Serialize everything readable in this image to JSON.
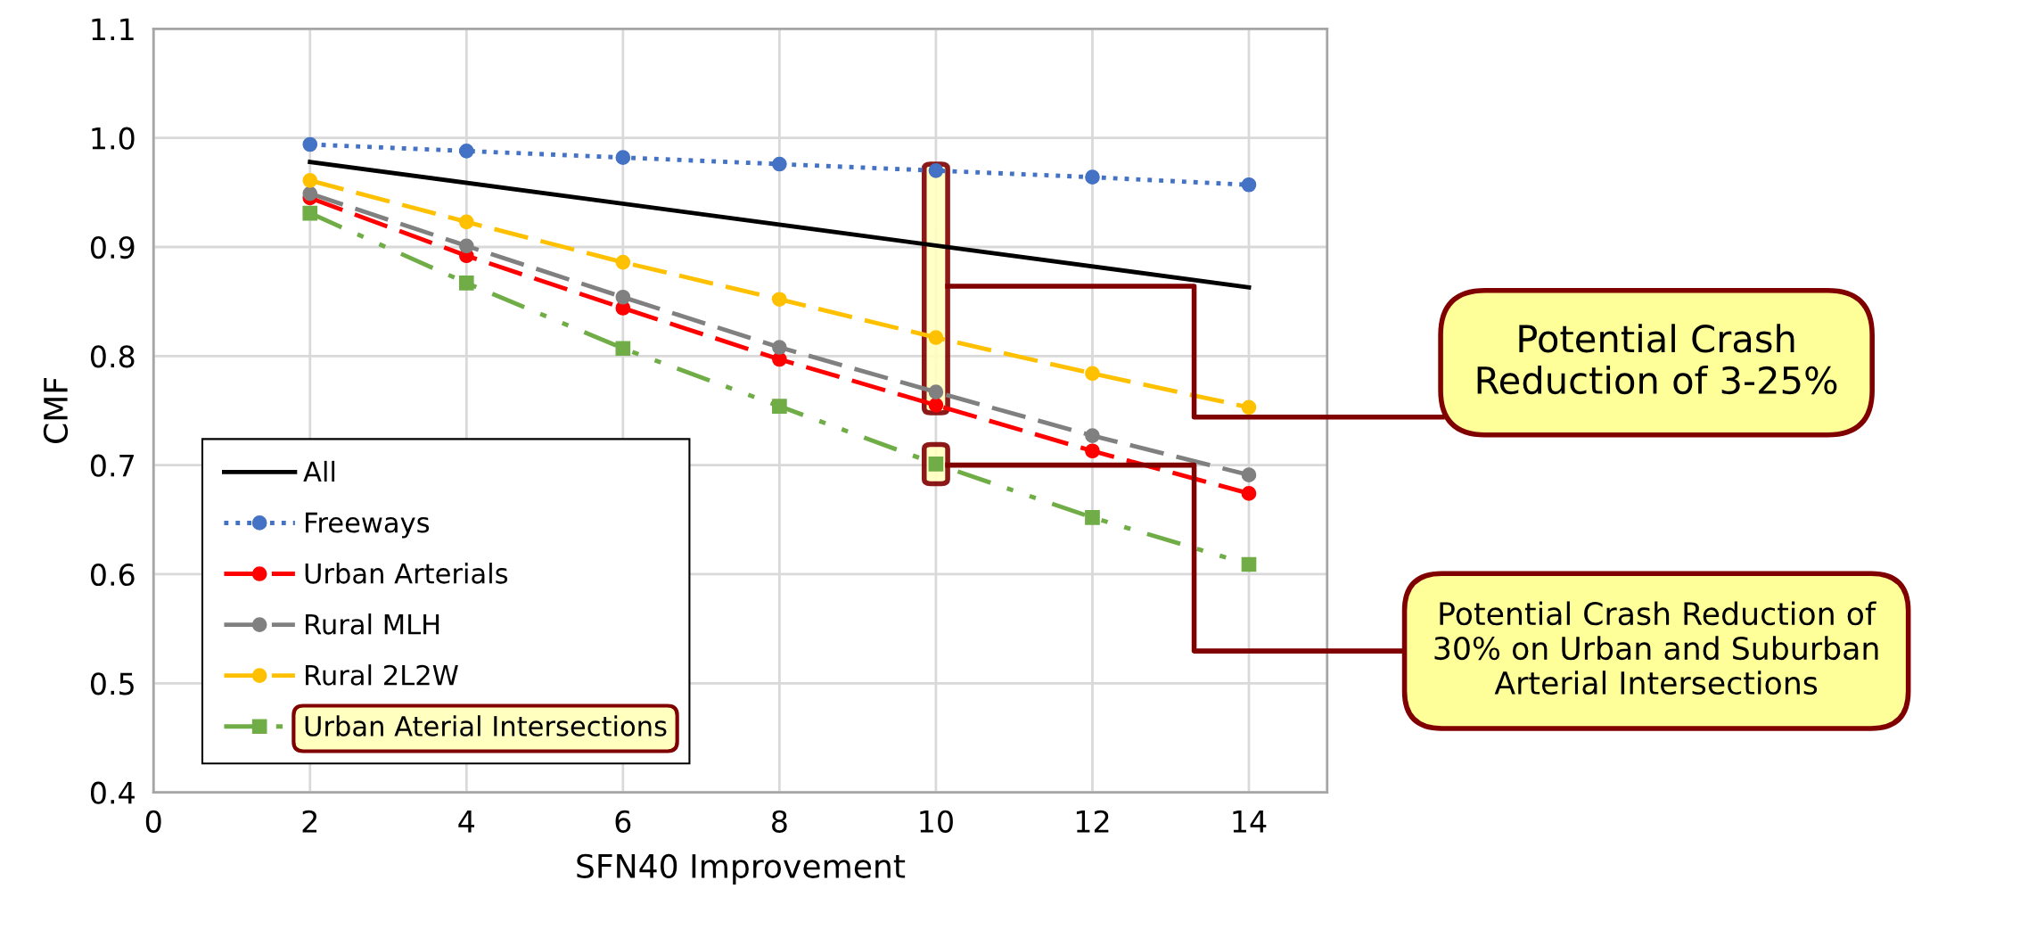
{
  "chart_data": {
    "type": "line",
    "xlabel": "SFN40 Improvement",
    "ylabel": "CMF",
    "x": [
      2,
      4,
      6,
      8,
      10,
      12,
      14
    ],
    "series": [
      {
        "name": "All",
        "color": "#000000",
        "x": [
          2,
          14
        ],
        "values": [
          0.978,
          0.863
        ],
        "marker": "none",
        "line_style": "solid"
      },
      {
        "name": "Freeways",
        "color": "#4472c4",
        "values": [
          0.994,
          0.988,
          0.982,
          0.976,
          0.97,
          0.964,
          0.957
        ],
        "marker": "circle",
        "line_style": "dotted"
      },
      {
        "name": "Urban Arterials",
        "color": "#ff0000",
        "values": [
          0.945,
          0.892,
          0.844,
          0.797,
          0.755,
          0.713,
          0.674
        ],
        "marker": "circle",
        "line_style": "dashed"
      },
      {
        "name": "Rural MLH",
        "color": "#808080",
        "values": [
          0.949,
          0.901,
          0.854,
          0.808,
          0.767,
          0.727,
          0.691
        ],
        "marker": "circle",
        "line_style": "dashed"
      },
      {
        "name": "Rural 2L2W",
        "color": "#ffc000",
        "values": [
          0.961,
          0.923,
          0.886,
          0.852,
          0.817,
          0.784,
          0.753
        ],
        "marker": "circle",
        "line_style": "dashed"
      },
      {
        "name": "Urban Aterial Intersections",
        "color": "#70ad47",
        "values": [
          0.931,
          0.867,
          0.807,
          0.754,
          0.701,
          0.652,
          0.609
        ],
        "marker": "square",
        "line_style": "dashdot"
      }
    ],
    "xlim": [
      0,
      15
    ],
    "xticks": [
      0,
      2,
      4,
      6,
      8,
      10,
      12,
      14
    ],
    "ylim": [
      0.4,
      1.1
    ],
    "yticks": [
      0.4,
      0.5,
      0.6,
      0.7,
      0.8,
      0.9,
      {
        "value": 1.0,
        "label": "1.0"
      },
      1.1
    ],
    "grid": true,
    "legend": "bottom left",
    "annotations": [
      "Potential Crash Reduction of 3-25%",
      "Potential Crash Reduction of 30% on Urban and Suburban Arterial Intersections"
    ]
  }
}
